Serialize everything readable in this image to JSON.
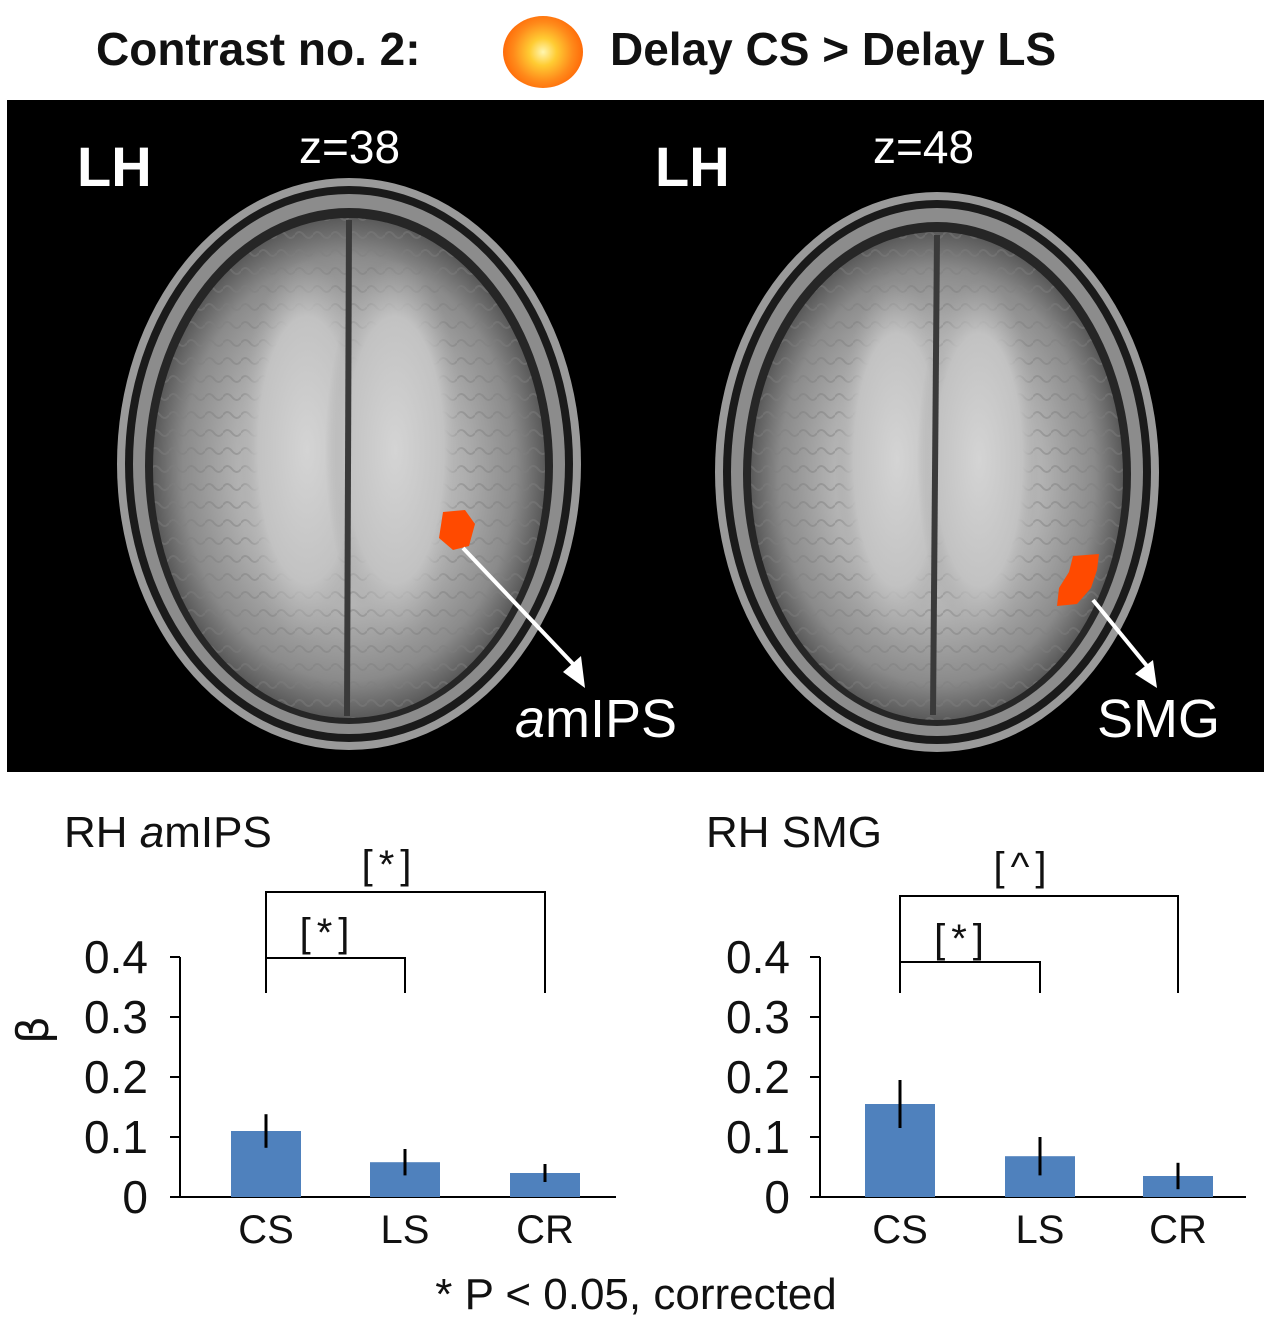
{
  "header": {
    "left_text": "Contrast no. 2:",
    "right_text": "Delay CS > Delay LS",
    "blob_color": "#ff7a10"
  },
  "brain_panel": {
    "background": "#000000",
    "activation_color": "#ff4a00",
    "slices": [
      {
        "hemisphere": "LH",
        "z_label": "z=38",
        "roi_prefix": "a",
        "roi_rest": "mIPS"
      },
      {
        "hemisphere": "LH",
        "z_label": "z=48",
        "roi_prefix": "",
        "roi_rest": "SMG"
      }
    ]
  },
  "chart_data": [
    {
      "type": "bar",
      "title_prefix": "RH ",
      "title_italic": "a",
      "title_rest": "mIPS",
      "ylabel": "β",
      "categories": [
        "CS",
        "LS",
        "CR"
      ],
      "values": [
        0.11,
        0.058,
        0.04
      ],
      "errors": [
        0.028,
        0.022,
        0.015
      ],
      "ylim": [
        0,
        0.4
      ],
      "yticks": [
        "0",
        "0.1",
        "0.2",
        "0.3",
        "0.4"
      ],
      "bar_color": "#4f81bd",
      "comparisons": [
        {
          "from": "CS",
          "to": "LS",
          "label": "[*]"
        },
        {
          "from": "CS",
          "to": "CR",
          "label": "[*]"
        }
      ]
    },
    {
      "type": "bar",
      "title_prefix": "RH SMG",
      "title_italic": "",
      "title_rest": "",
      "ylabel": "",
      "categories": [
        "CS",
        "LS",
        "CR"
      ],
      "values": [
        0.155,
        0.068,
        0.035
      ],
      "errors": [
        0.04,
        0.032,
        0.022
      ],
      "ylim": [
        0,
        0.4
      ],
      "yticks": [
        "0",
        "0.1",
        "0.2",
        "0.3",
        "0.4"
      ],
      "bar_color": "#4f81bd",
      "comparisons": [
        {
          "from": "CS",
          "to": "LS",
          "label": "[*]"
        },
        {
          "from": "CS",
          "to": "CR",
          "label": "[^]"
        }
      ]
    }
  ],
  "footnote": "* P < 0.05, corrected"
}
